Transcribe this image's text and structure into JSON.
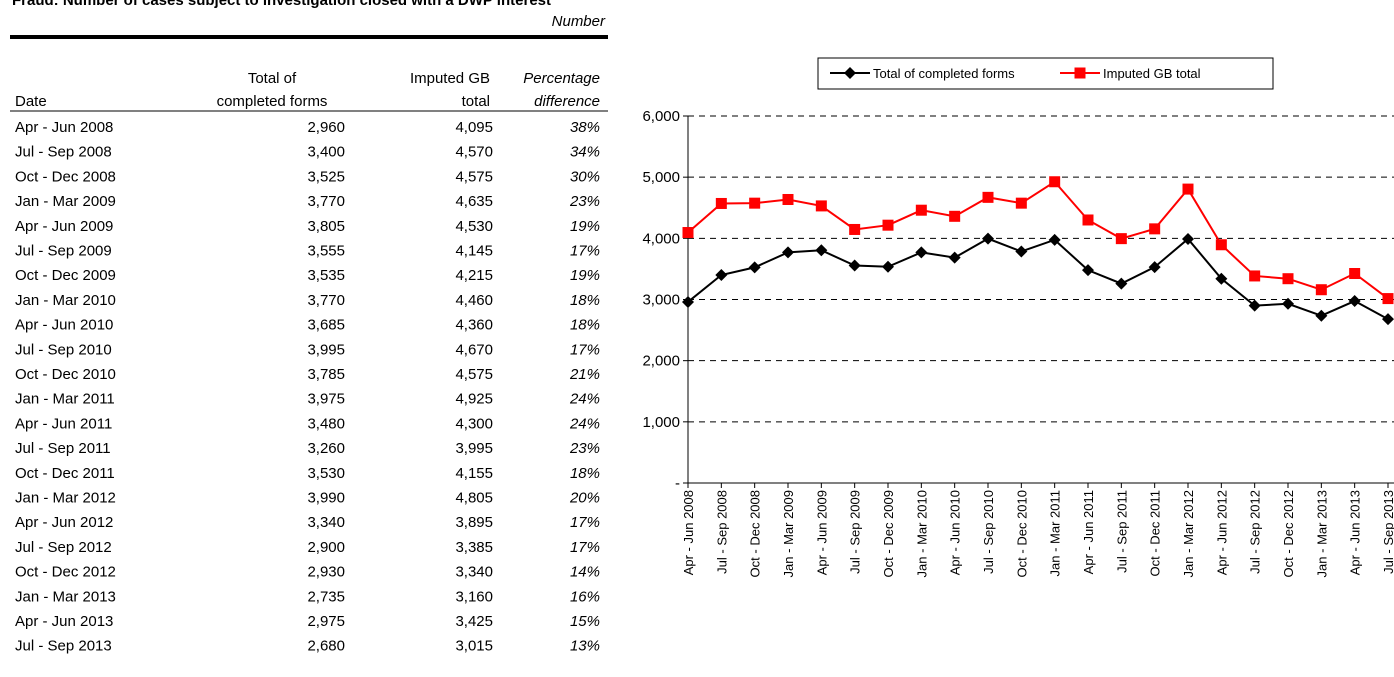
{
  "title": "Fraud: Number of cases subject to investigation closed with a DWP interest",
  "unit_label": "Number",
  "table": {
    "headers": [
      [
        "Date"
      ],
      [
        "Total of",
        "completed forms"
      ],
      [
        "Imputed GB",
        "total"
      ],
      [
        "Percentage",
        "difference"
      ]
    ],
    "rows": [
      [
        "Apr - Jun 2008",
        "2,960",
        "4,095",
        "38%"
      ],
      [
        "Jul - Sep 2008",
        "3,400",
        "4,570",
        "34%"
      ],
      [
        "Oct - Dec 2008",
        "3,525",
        "4,575",
        "30%"
      ],
      [
        "Jan - Mar 2009",
        "3,770",
        "4,635",
        "23%"
      ],
      [
        "Apr - Jun 2009",
        "3,805",
        "4,530",
        "19%"
      ],
      [
        "Jul - Sep 2009",
        "3,555",
        "4,145",
        "17%"
      ],
      [
        "Oct - Dec 2009",
        "3,535",
        "4,215",
        "19%"
      ],
      [
        "Jan - Mar 2010",
        "3,770",
        "4,460",
        "18%"
      ],
      [
        "Apr - Jun 2010",
        "3,685",
        "4,360",
        "18%"
      ],
      [
        "Jul - Sep 2010",
        "3,995",
        "4,670",
        "17%"
      ],
      [
        "Oct - Dec 2010",
        "3,785",
        "4,575",
        "21%"
      ],
      [
        "Jan - Mar 2011",
        "3,975",
        "4,925",
        "24%"
      ],
      [
        "Apr - Jun 2011",
        "3,480",
        "4,300",
        "24%"
      ],
      [
        "Jul - Sep 2011",
        "3,260",
        "3,995",
        "23%"
      ],
      [
        "Oct - Dec 2011",
        "3,530",
        "4,155",
        "18%"
      ],
      [
        "Jan - Mar 2012",
        "3,990",
        "4,805",
        "20%"
      ],
      [
        "Apr - Jun 2012",
        "3,340",
        "3,895",
        "17%"
      ],
      [
        "Jul - Sep 2012",
        "2,900",
        "3,385",
        "17%"
      ],
      [
        "Oct - Dec 2012",
        "2,930",
        "3,340",
        "14%"
      ],
      [
        "Jan - Mar 2013",
        "2,735",
        "3,160",
        "16%"
      ],
      [
        "Apr - Jun 2013",
        "2,975",
        "3,425",
        "15%"
      ],
      [
        "Jul - Sep 2013",
        "2,680",
        "3,015",
        "13%"
      ]
    ]
  },
  "chart_data": {
    "type": "line",
    "categories": [
      "Apr - Jun 2008",
      "Jul - Sep 2008",
      "Oct - Dec 2008",
      "Jan - Mar 2009",
      "Apr - Jun 2009",
      "Jul - Sep 2009",
      "Oct - Dec 2009",
      "Jan - Mar 2010",
      "Apr - Jun 2010",
      "Jul - Sep 2010",
      "Oct - Dec 2010",
      "Jan - Mar 2011",
      "Apr - Jun 2011",
      "Jul - Sep 2011",
      "Oct - Dec 2011",
      "Jan - Mar 2012",
      "Apr - Jun 2012",
      "Jul - Sep 2012",
      "Oct - Dec 2012",
      "Jan - Mar 2013",
      "Apr - Jun 2013",
      "Jul - Sep 2013"
    ],
    "series": [
      {
        "name": "Total of completed forms",
        "color": "#000000",
        "marker": "diamond",
        "values": [
          2960,
          3400,
          3525,
          3770,
          3805,
          3555,
          3535,
          3770,
          3685,
          3995,
          3785,
          3975,
          3480,
          3260,
          3530,
          3990,
          3340,
          2900,
          2930,
          2735,
          2975,
          2680
        ]
      },
      {
        "name": "Imputed GB total",
        "color": "#ff0000",
        "marker": "square",
        "values": [
          4095,
          4570,
          4575,
          4635,
          4530,
          4145,
          4215,
          4460,
          4360,
          4670,
          4575,
          4925,
          4300,
          3995,
          4155,
          4805,
          3895,
          3385,
          3340,
          3160,
          3425,
          3015
        ]
      }
    ],
    "ylim": [
      0,
      6000
    ],
    "yticks": [
      {
        "value": 0,
        "label": "-"
      },
      {
        "value": 1000,
        "label": "1,000"
      },
      {
        "value": 2000,
        "label": "2,000"
      },
      {
        "value": 3000,
        "label": "3,000"
      },
      {
        "value": 4000,
        "label": "4,000"
      },
      {
        "value": 5000,
        "label": "5,000"
      },
      {
        "value": 6000,
        "label": "6,000"
      }
    ],
    "grid": true,
    "legend": "top"
  }
}
